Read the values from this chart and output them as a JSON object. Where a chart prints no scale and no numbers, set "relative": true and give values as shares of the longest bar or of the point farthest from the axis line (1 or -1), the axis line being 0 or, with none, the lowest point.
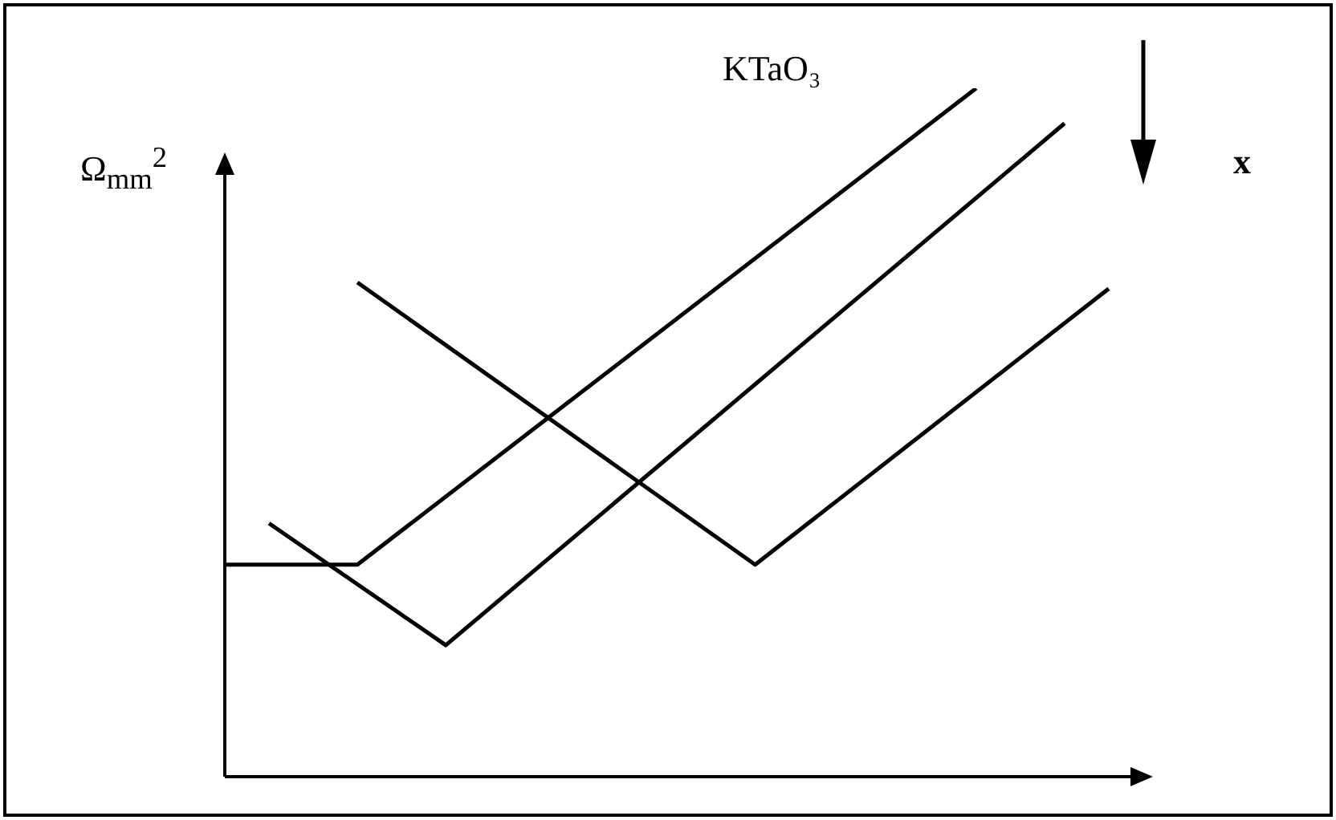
{
  "chart_data": {
    "type": "line",
    "relative": true,
    "title": "KTaO₃",
    "ylabel": "Ω$_{mm}$$^{2}$",
    "annotations": [
      "x"
    ],
    "categories": [
      null,
      null,
      null,
      null,
      null,
      null,
      null,
      null,
      null,
      null,
      null,
      null,
      null,
      null,
      null,
      null,
      null,
      null,
      null,
      null,
      null,
      null
    ],
    "series": [
      {
        "color": "#000000",
        "values": [
          0.308,
          null,
          null,
          0.308,
          null,
          null,
          null,
          null,
          null,
          null,
          null,
          null,
          null,
          null,
          null,
          null,
          null,
          1,
          null,
          null,
          null,
          null
        ]
      },
      {
        "color": "#000000",
        "values": [
          null,
          0.368,
          null,
          null,
          null,
          0.191,
          null,
          null,
          null,
          null,
          null,
          null,
          null,
          null,
          null,
          null,
          null,
          null,
          null,
          0.949,
          null,
          null
        ]
      },
      {
        "color": "#000000",
        "values": [
          null,
          null,
          null,
          0.718,
          null,
          null,
          null,
          null,
          null,
          null,
          null,
          null,
          0.308,
          null,
          null,
          null,
          null,
          null,
          null,
          null,
          0.709,
          null
        ]
      }
    ]
  }
}
